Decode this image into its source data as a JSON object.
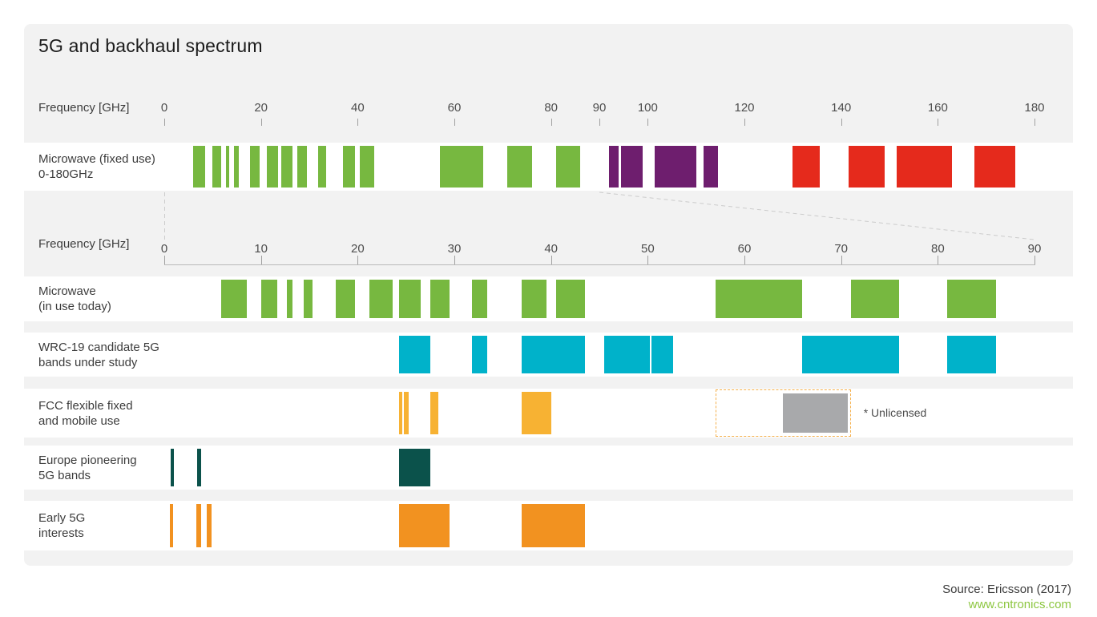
{
  "title": "5G and backhaul spectrum",
  "footer": {
    "source": "Source: Ericsson (2017)",
    "watermark": "www.cntronics.com"
  },
  "colors": {
    "card_bg": "#f2f2f2",
    "row_bg": "#ffffff",
    "green": "#77b840",
    "purple": "#6e1e6e",
    "red": "#e52a1c",
    "cyan": "#00b2ca",
    "amber": "#f7b233",
    "gray": "#a8a9ab",
    "teal": "#0b524b",
    "orange": "#f29220",
    "unlicensed_border": "#f5b04c",
    "title_text": "#1c1c1c",
    "label_text": "#3c3c3c",
    "axis_text": "#4d4d4d",
    "tick_mark": "#a0a0a0",
    "axis_line": "#b8b8b8",
    "dashed_line": "#cccccc",
    "watermark_green": "#8cc63f"
  },
  "chart_data": {
    "type": "bar",
    "subtype": "spectrum-band-allocation",
    "title": "5G and backhaul spectrum",
    "unit": "GHz",
    "legend_position": "none",
    "grid": false,
    "axes": {
      "top": {
        "label": "Frequency [GHz]",
        "range": [
          0,
          180
        ],
        "ticks": [
          0,
          20,
          40,
          60,
          80,
          90,
          100,
          120,
          140,
          160,
          180
        ]
      },
      "bottom": {
        "label": "Frequency [GHz]",
        "range": [
          0,
          90
        ],
        "ticks": [
          0,
          10,
          20,
          30,
          40,
          50,
          60,
          70,
          80,
          90
        ]
      }
    },
    "rows": [
      {
        "label_lines": [
          "Microwave (fixed use)",
          "0-180GHz"
        ],
        "axis": "top",
        "segments": [
          {
            "from": 5.9,
            "to": 8.5,
            "color": "green"
          },
          {
            "from": 10,
            "to": 11.7,
            "color": "green"
          },
          {
            "from": 12.7,
            "to": 13.25,
            "color": "green"
          },
          {
            "from": 14.4,
            "to": 15.35,
            "color": "green"
          },
          {
            "from": 17.7,
            "to": 19.7,
            "color": "green"
          },
          {
            "from": 21.2,
            "to": 23.6,
            "color": "green"
          },
          {
            "from": 24.25,
            "to": 26.5,
            "color": "green"
          },
          {
            "from": 27.5,
            "to": 29.5,
            "color": "green"
          },
          {
            "from": 31.8,
            "to": 33.4,
            "color": "green"
          },
          {
            "from": 37,
            "to": 39.5,
            "color": "green"
          },
          {
            "from": 40.5,
            "to": 43.5,
            "color": "green"
          },
          {
            "from": 57,
            "to": 66,
            "color": "green"
          },
          {
            "from": 71,
            "to": 76,
            "color": "green"
          },
          {
            "from": 81,
            "to": 86,
            "color": "green"
          },
          {
            "from": 92,
            "to": 94,
            "color": "purple"
          },
          {
            "from": 94.5,
            "to": 99,
            "color": "purple"
          },
          {
            "from": 101.5,
            "to": 110,
            "color": "purple"
          },
          {
            "from": 111.5,
            "to": 114.5,
            "color": "purple"
          },
          {
            "from": 130,
            "to": 135.5,
            "color": "red"
          },
          {
            "from": 141.5,
            "to": 149,
            "color": "red"
          },
          {
            "from": 151.5,
            "to": 163,
            "color": "red"
          },
          {
            "from": 167.5,
            "to": 176,
            "color": "red"
          }
        ]
      },
      {
        "label_lines": [
          "Microwave",
          "(in use today)"
        ],
        "axis": "bottom",
        "segments": [
          {
            "from": 5.9,
            "to": 8.5,
            "color": "green"
          },
          {
            "from": 10,
            "to": 11.7,
            "color": "green"
          },
          {
            "from": 12.7,
            "to": 13.25,
            "color": "green"
          },
          {
            "from": 14.4,
            "to": 15.35,
            "color": "green"
          },
          {
            "from": 17.7,
            "to": 19.7,
            "color": "green"
          },
          {
            "from": 21.2,
            "to": 23.6,
            "color": "green"
          },
          {
            "from": 24.25,
            "to": 26.5,
            "color": "green"
          },
          {
            "from": 27.5,
            "to": 29.5,
            "color": "green"
          },
          {
            "from": 31.8,
            "to": 33.4,
            "color": "green"
          },
          {
            "from": 37,
            "to": 39.5,
            "color": "green"
          },
          {
            "from": 40.5,
            "to": 43.5,
            "color": "green"
          },
          {
            "from": 57,
            "to": 66,
            "color": "green"
          },
          {
            "from": 71,
            "to": 76,
            "color": "green"
          },
          {
            "from": 81,
            "to": 86,
            "color": "green"
          }
        ]
      },
      {
        "label_lines": [
          "WRC-19 candidate 5G",
          "bands under study"
        ],
        "axis": "bottom",
        "segments": [
          {
            "from": 24.25,
            "to": 27.5,
            "color": "cyan"
          },
          {
            "from": 31.8,
            "to": 33.4,
            "color": "cyan"
          },
          {
            "from": 37,
            "to": 43.5,
            "color": "cyan"
          },
          {
            "from": 45.5,
            "to": 50.2,
            "color": "cyan"
          },
          {
            "from": 50.4,
            "to": 52.6,
            "color": "cyan"
          },
          {
            "from": 66,
            "to": 76,
            "color": "cyan"
          },
          {
            "from": 81,
            "to": 86,
            "color": "cyan"
          }
        ]
      },
      {
        "label_lines": [
          "FCC flexible fixed",
          "and mobile use"
        ],
        "axis": "bottom",
        "segments": [
          {
            "from": 24.25,
            "to": 24.45,
            "color": "amber"
          },
          {
            "from": 24.75,
            "to": 25.25,
            "color": "amber"
          },
          {
            "from": 27.5,
            "to": 28.35,
            "color": "amber"
          },
          {
            "from": 37,
            "to": 40,
            "color": "amber"
          }
        ],
        "unlicensed": {
          "box_from": 57,
          "box_to": 71,
          "fill_from": 64,
          "fill_to": 71,
          "fill_color": "gray",
          "note": "* Unlicensed"
        }
      },
      {
        "label_lines": [
          "Europe pioneering",
          "5G bands"
        ],
        "axis": "bottom",
        "segments": [
          {
            "from": 0.69,
            "to": 0.79,
            "color": "teal"
          },
          {
            "from": 3.4,
            "to": 3.8,
            "color": "teal"
          },
          {
            "from": 24.25,
            "to": 27.5,
            "color": "teal"
          }
        ]
      },
      {
        "label_lines": [
          "Early 5G",
          "interests"
        ],
        "axis": "bottom",
        "segments": [
          {
            "from": 0.6,
            "to": 0.8,
            "color": "orange"
          },
          {
            "from": 3.3,
            "to": 3.8,
            "color": "orange"
          },
          {
            "from": 4.4,
            "to": 4.9,
            "color": "orange"
          },
          {
            "from": 24.25,
            "to": 29.5,
            "color": "orange"
          },
          {
            "from": 37,
            "to": 43.5,
            "color": "orange"
          }
        ]
      }
    ]
  }
}
